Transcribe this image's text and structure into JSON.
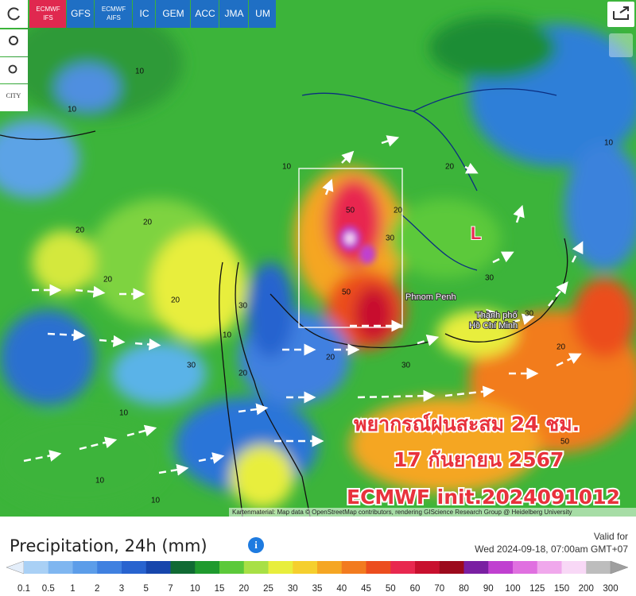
{
  "toolbar": {
    "tabs": [
      {
        "line1": "ECMWF",
        "line2": "IFS",
        "active": true
      },
      {
        "line1": "GFS"
      },
      {
        "line1": "ECMWF",
        "line2": "AIFS"
      },
      {
        "line1": "IC"
      },
      {
        "line1": "GEM"
      },
      {
        "line1": "ACC"
      },
      {
        "line1": "JMA"
      },
      {
        "line1": "UM"
      }
    ],
    "city_button": "CITY"
  },
  "map": {
    "low_marker": "L",
    "places": [
      "Phnom Penh",
      "Thành phố",
      "Hồ Chí Minh"
    ],
    "contour_labels": [
      "10",
      "10",
      "10",
      "20",
      "20",
      "20",
      "20",
      "30",
      "30",
      "50",
      "50",
      "30",
      "20",
      "10",
      "20",
      "30",
      "10",
      "20",
      "20",
      "30",
      "10",
      "10",
      "30",
      "20",
      "50",
      "10"
    ],
    "overlay": [
      "พยากรณ์ฝนสะสม 24 ชม.",
      "17 กันยายน 2567",
      "ECMWF init.2024091012"
    ],
    "attribution": "Kartenmaterial: Map data © OpenStreetMap contributors, rendering GIScience Research Group @ Heidelberg University"
  },
  "legend": {
    "title": "Precipitation, 24h (mm)",
    "valid_label": "Valid for",
    "valid_time": "Wed 2024-09-18, 07:00am GMT+07",
    "scale": [
      "0.1",
      "0.5",
      "1",
      "2",
      "3",
      "5",
      "7",
      "10",
      "15",
      "20",
      "25",
      "30",
      "35",
      "40",
      "45",
      "50",
      "60",
      "70",
      "80",
      "90",
      "100",
      "125",
      "150",
      "200",
      "300"
    ],
    "colors": [
      "#e4eefa",
      "#a9d0f5",
      "#7fb6f0",
      "#5c9de9",
      "#3f80e0",
      "#2863cf",
      "#1746ac",
      "#106a33",
      "#1f9a2e",
      "#5cc93a",
      "#a8e045",
      "#e8ee3c",
      "#f5cf2e",
      "#f5a623",
      "#f27b1f",
      "#ec4d1e",
      "#e8284f",
      "#c8102e",
      "#9c0a1c",
      "#7a1fa2",
      "#c040d0",
      "#e070e0",
      "#f0a8ec",
      "#f8d8f6",
      "#bdbdbd",
      "#9e9e9e"
    ]
  }
}
